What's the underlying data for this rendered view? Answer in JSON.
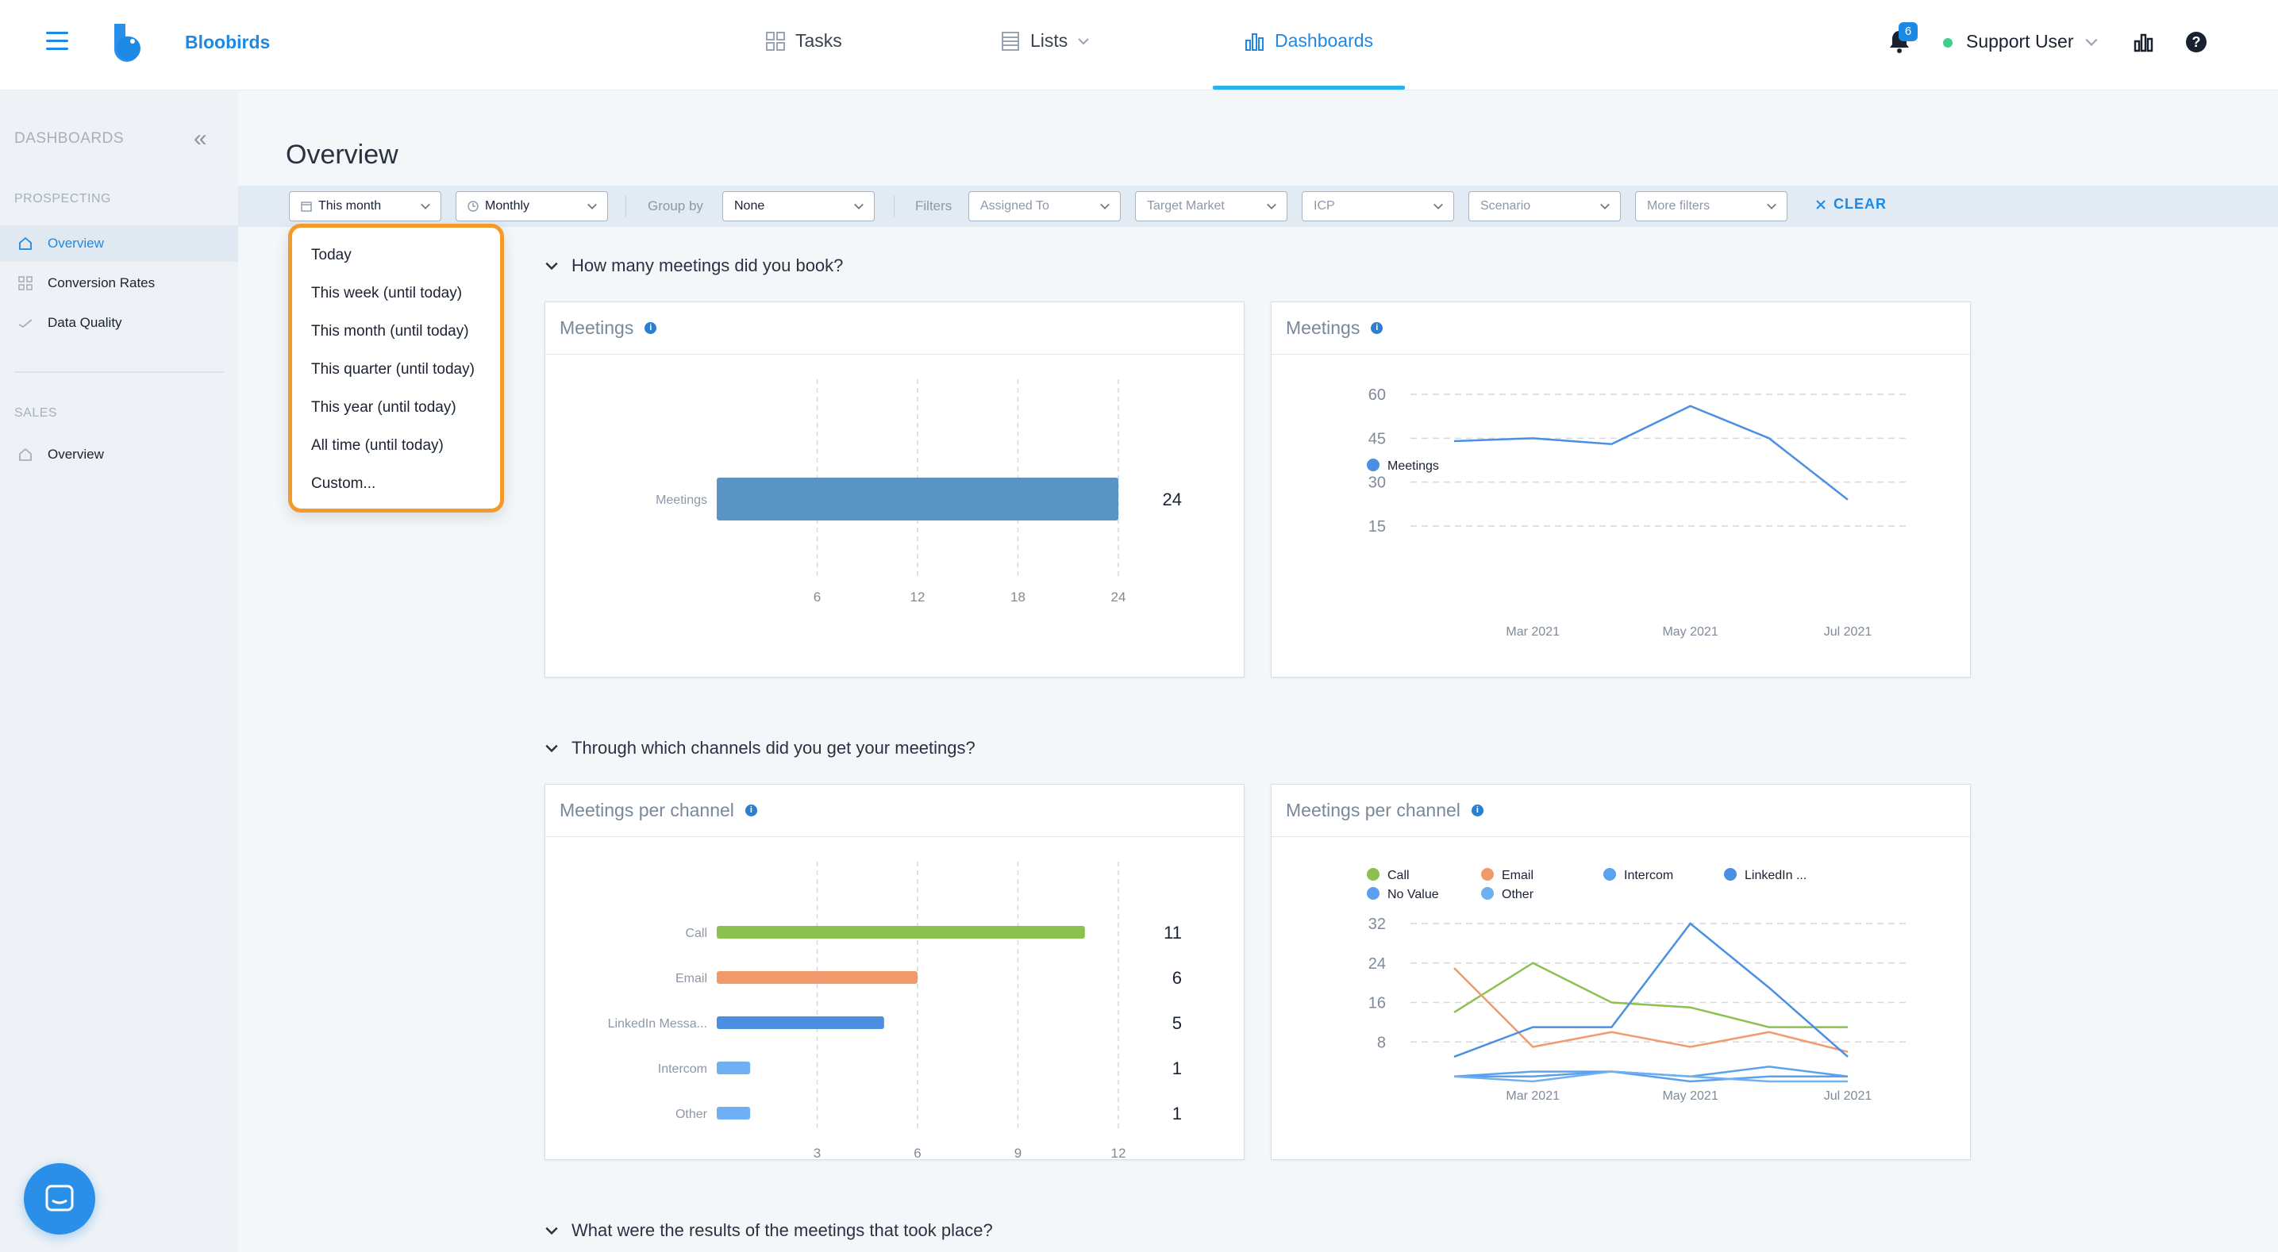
{
  "header": {
    "brand": "Bloobirds",
    "nav": [
      {
        "label": "Tasks"
      },
      {
        "label": "Lists"
      },
      {
        "label": "Dashboards"
      }
    ],
    "notifications_count": "6",
    "user_name": "Support User",
    "help_label": "?"
  },
  "sidebar": {
    "title": "DASHBOARDS",
    "sections": [
      {
        "label": "PROSPECTING",
        "items": [
          "Overview",
          "Conversion Rates",
          "Data Quality"
        ]
      },
      {
        "label": "SALES",
        "items": [
          "Overview"
        ]
      }
    ],
    "active_item": "Overview"
  },
  "page": {
    "title": "Overview"
  },
  "filters": {
    "date_range": "This month",
    "interval": "Monthly",
    "group_by_label": "Group by",
    "group_by_value": "None",
    "filters_label": "Filters",
    "filter_placeholders": [
      "Assigned To",
      "Target Market",
      "ICP",
      "Scenario",
      "More filters"
    ],
    "clear_label": "CLEAR"
  },
  "date_dropdown": {
    "options": [
      "Today",
      "This week (until today)",
      "This month (until today)",
      "This quarter (until today)",
      "This year (until today)",
      "All time (until today)",
      "Custom..."
    ]
  },
  "sections": [
    {
      "question": "How many meetings did you book?"
    },
    {
      "question": "Through which channels did you get your meetings?"
    },
    {
      "question": "What were the results of the meetings that took place?"
    }
  ],
  "colors": {
    "accent": "#1e88e5",
    "highlight": "#f39a2c",
    "call": "#8cc152",
    "email": "#f19a6b",
    "intercom": "#5aa3ef",
    "linkedin": "#4a90e2",
    "no_value": "#5a9ff0",
    "other": "#6fb0f2",
    "meetings_bar": "#5a94c5"
  },
  "chart_data": [
    {
      "type": "bar",
      "title": "Meetings",
      "orientation": "horizontal",
      "categories": [
        "Meetings"
      ],
      "values": [
        24
      ],
      "xticks": [
        "6",
        "12",
        "18",
        "24"
      ],
      "xlim": [
        0,
        24
      ]
    },
    {
      "type": "line",
      "title": "Meetings",
      "legend": [
        "Meetings"
      ],
      "x": [
        "Feb 2021",
        "Mar 2021",
        "Apr 2021",
        "May 2021",
        "Jun 2021",
        "Jul 2021"
      ],
      "xtick_labels": [
        "Mar 2021",
        "May 2021",
        "Jul 2021"
      ],
      "series": [
        {
          "name": "Meetings",
          "values": [
            44,
            45,
            43,
            56,
            45,
            24
          ]
        }
      ],
      "yticks": [
        "15",
        "30",
        "45",
        "60"
      ],
      "ylim": [
        10,
        62
      ]
    },
    {
      "type": "bar",
      "title": "Meetings per channel",
      "orientation": "horizontal",
      "categories": [
        "Call",
        "Email",
        "LinkedIn Messa...",
        "Intercom",
        "Other"
      ],
      "values": [
        11,
        6,
        5,
        1,
        1
      ],
      "xticks": [
        "3",
        "6",
        "9",
        "12"
      ],
      "xlim": [
        0,
        12
      ]
    },
    {
      "type": "line",
      "title": "Meetings per channel",
      "legend": [
        "Call",
        "Email",
        "Intercom",
        "LinkedIn ...",
        "No Value",
        "Other"
      ],
      "x": [
        "Feb 2021",
        "Mar 2021",
        "Apr 2021",
        "May 2021",
        "Jun 2021",
        "Jul 2021"
      ],
      "xtick_labels": [
        "Mar 2021",
        "May 2021",
        "Jul 2021"
      ],
      "series": [
        {
          "name": "Call",
          "values": [
            14,
            24,
            16,
            15,
            11,
            11
          ]
        },
        {
          "name": "Email",
          "values": [
            23,
            7,
            10,
            7,
            10,
            6
          ]
        },
        {
          "name": "Intercom",
          "values": [
            1,
            2,
            2,
            1,
            3,
            1
          ]
        },
        {
          "name": "LinkedIn ...",
          "values": [
            5,
            11,
            11,
            32,
            19,
            5
          ]
        },
        {
          "name": "No Value",
          "values": [
            1,
            1,
            2,
            0,
            1,
            1
          ]
        },
        {
          "name": "Other",
          "values": [
            1,
            0,
            2,
            1,
            0,
            0
          ]
        }
      ],
      "yticks": [
        "8",
        "16",
        "24",
        "32"
      ],
      "ylim": [
        0,
        34
      ]
    }
  ]
}
